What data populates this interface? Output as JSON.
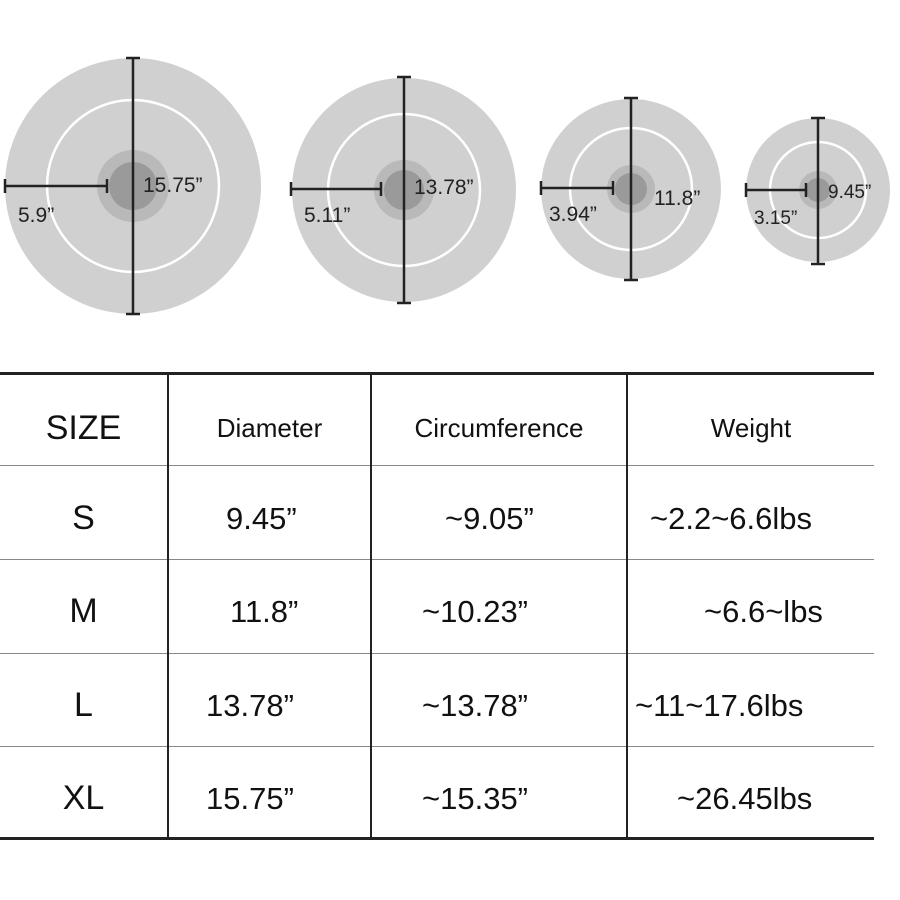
{
  "diagram": {
    "plates": [
      {
        "diameter_label": "15.75”",
        "radius_label": "5.9”"
      },
      {
        "diameter_label": "13.78”",
        "radius_label": "5.11”"
      },
      {
        "diameter_label": "11.8”",
        "radius_label": "3.94”"
      },
      {
        "diameter_label": "9.45”",
        "radius_label": "3.15”"
      }
    ],
    "colors": {
      "plate": "#d0d0d0",
      "ring": "#ffffff",
      "hub_outer": "#b9b9b9",
      "hub_inner": "#9a9a9a",
      "line": "#222222"
    }
  },
  "table": {
    "headers": [
      "SIZE",
      "Diameter",
      "Circumference",
      "Weight"
    ],
    "rows": [
      {
        "size": "S",
        "diameter": "9.45”",
        "circumference": "~9.05”",
        "weight": "~2.2~6.6lbs"
      },
      {
        "size": "M",
        "diameter": "11.8”",
        "circumference": "~10.23”",
        "weight": "~6.6~lbs"
      },
      {
        "size": "L",
        "diameter": "13.78”",
        "circumference": "~13.78”",
        "weight": "~11~17.6lbs"
      },
      {
        "size": "XL",
        "diameter": "15.75”",
        "circumference": "~15.35”",
        "weight": "~26.45lbs"
      }
    ]
  }
}
